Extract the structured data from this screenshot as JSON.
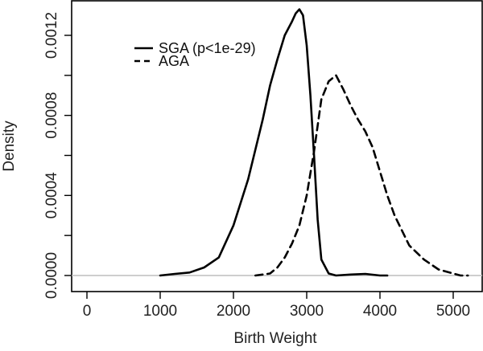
{
  "chart_data": {
    "type": "line",
    "xlabel": "Birth Weight",
    "ylabel": "Density",
    "xlim": [
      0,
      5200
    ],
    "ylim": [
      0,
      0.00135
    ],
    "x_ticks": [
      0,
      1000,
      2000,
      3000,
      4000,
      5000
    ],
    "x_tick_labels": [
      "0",
      "1000",
      "2000",
      "3000",
      "4000",
      "5000"
    ],
    "y_ticks": [
      0,
      0.0004,
      0.0008,
      0.0012
    ],
    "y_tick_labels": [
      "0.0000",
      "0.0004",
      "0.0008",
      "0.0012"
    ],
    "baseline": {
      "y": 0,
      "color": "#bdbdbd"
    },
    "legend_position": "top-left",
    "series": [
      {
        "name": "SGA (p<1e-29)",
        "line_style": "solid",
        "color": "#000000",
        "x": [
          1000,
          1200,
          1400,
          1600,
          1800,
          2000,
          2200,
          2400,
          2500,
          2600,
          2700,
          2800,
          2850,
          2900,
          2950,
          3000,
          3050,
          3100,
          3150,
          3200,
          3300,
          3400,
          3600,
          3800,
          4000,
          4100
        ],
        "values": [
          0.0,
          8e-06,
          1.5e-05,
          4e-05,
          9e-05,
          0.00025,
          0.00048,
          0.00078,
          0.00095,
          0.00108,
          0.0012,
          0.00127,
          0.00131,
          0.00133,
          0.0013,
          0.00115,
          0.0009,
          0.0006,
          0.00028,
          8e-05,
          1e-05,
          0.0,
          5e-06,
          8e-06,
          0.0,
          0.0
        ]
      },
      {
        "name": "AGA",
        "line_style": "dashed",
        "color": "#000000",
        "x": [
          2300,
          2400,
          2500,
          2600,
          2700,
          2800,
          2900,
          3000,
          3100,
          3200,
          3300,
          3400,
          3500,
          3600,
          3700,
          3800,
          3900,
          4000,
          4100,
          4200,
          4400,
          4600,
          4800,
          5000,
          5100,
          5200
        ],
        "values": [
          0.0,
          5e-06,
          1e-05,
          4e-05,
          9e-05,
          0.00016,
          0.00025,
          0.0004,
          0.00062,
          0.00088,
          0.00097,
          0.001,
          0.00093,
          0.00085,
          0.00078,
          0.00072,
          0.00064,
          0.00052,
          0.0004,
          0.0003,
          0.00015,
          8e-05,
          3e-05,
          1e-05,
          0.0,
          0.0
        ]
      }
    ]
  }
}
